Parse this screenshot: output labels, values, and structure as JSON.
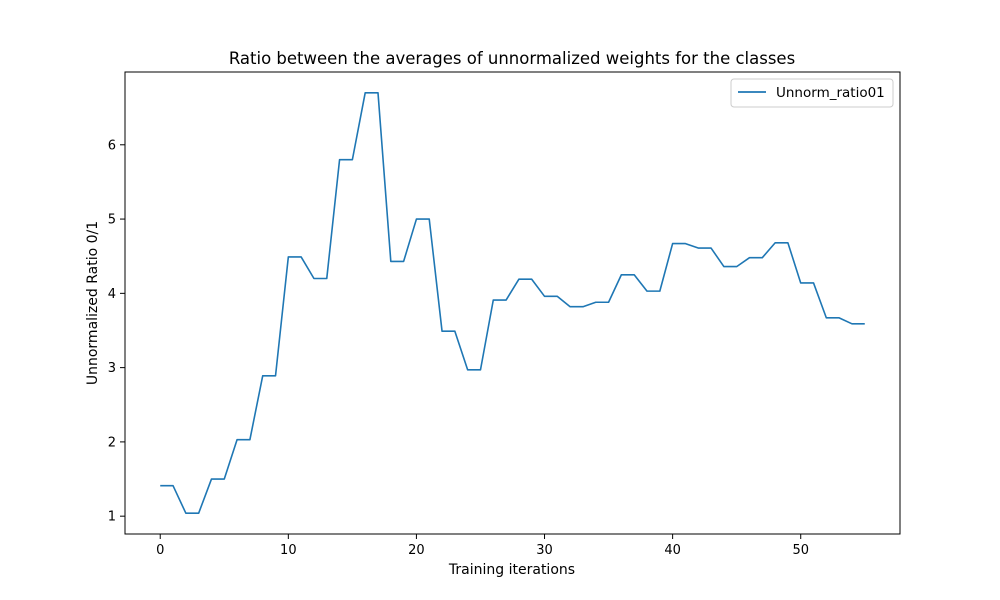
{
  "chart_data": {
    "type": "line",
    "title": "Ratio between the averages of unnormalized weights for the classes",
    "xlabel": "Training iterations",
    "ylabel": "Unnormalized Ratio 0/1",
    "xlim": [
      -2.75,
      57.75
    ],
    "ylim": [
      0.76,
      6.98
    ],
    "xticks": [
      0,
      10,
      20,
      30,
      40,
      50
    ],
    "yticks": [
      1,
      2,
      3,
      4,
      5,
      6
    ],
    "grid": false,
    "legend_position": "top-right",
    "series": [
      {
        "name": "Unnorm_ratio01",
        "color": "#1f77b4",
        "x": [
          0,
          1,
          2,
          3,
          4,
          5,
          6,
          7,
          8,
          9,
          10,
          11,
          12,
          13,
          14,
          15,
          16,
          17,
          18,
          19,
          20,
          21,
          22,
          23,
          24,
          25,
          26,
          27,
          28,
          29,
          30,
          31,
          32,
          33,
          34,
          35,
          36,
          37,
          38,
          39,
          40,
          41,
          42,
          43,
          44,
          45,
          46,
          47,
          48,
          49,
          50,
          51,
          52,
          53,
          54,
          55
        ],
        "y": [
          1.41,
          1.41,
          1.04,
          1.04,
          1.5,
          1.5,
          2.03,
          2.03,
          2.89,
          2.89,
          4.49,
          4.49,
          4.2,
          4.2,
          5.8,
          5.8,
          6.7,
          6.7,
          4.43,
          4.43,
          5.0,
          5.0,
          3.49,
          3.49,
          2.97,
          2.97,
          3.91,
          3.91,
          4.19,
          4.19,
          3.96,
          3.96,
          3.82,
          3.82,
          3.88,
          3.88,
          4.25,
          4.25,
          4.03,
          4.03,
          4.67,
          4.67,
          4.61,
          4.61,
          4.36,
          4.36,
          4.48,
          4.48,
          4.68,
          4.68,
          4.14,
          4.14,
          3.67,
          3.67,
          3.59,
          3.59
        ]
      }
    ]
  }
}
